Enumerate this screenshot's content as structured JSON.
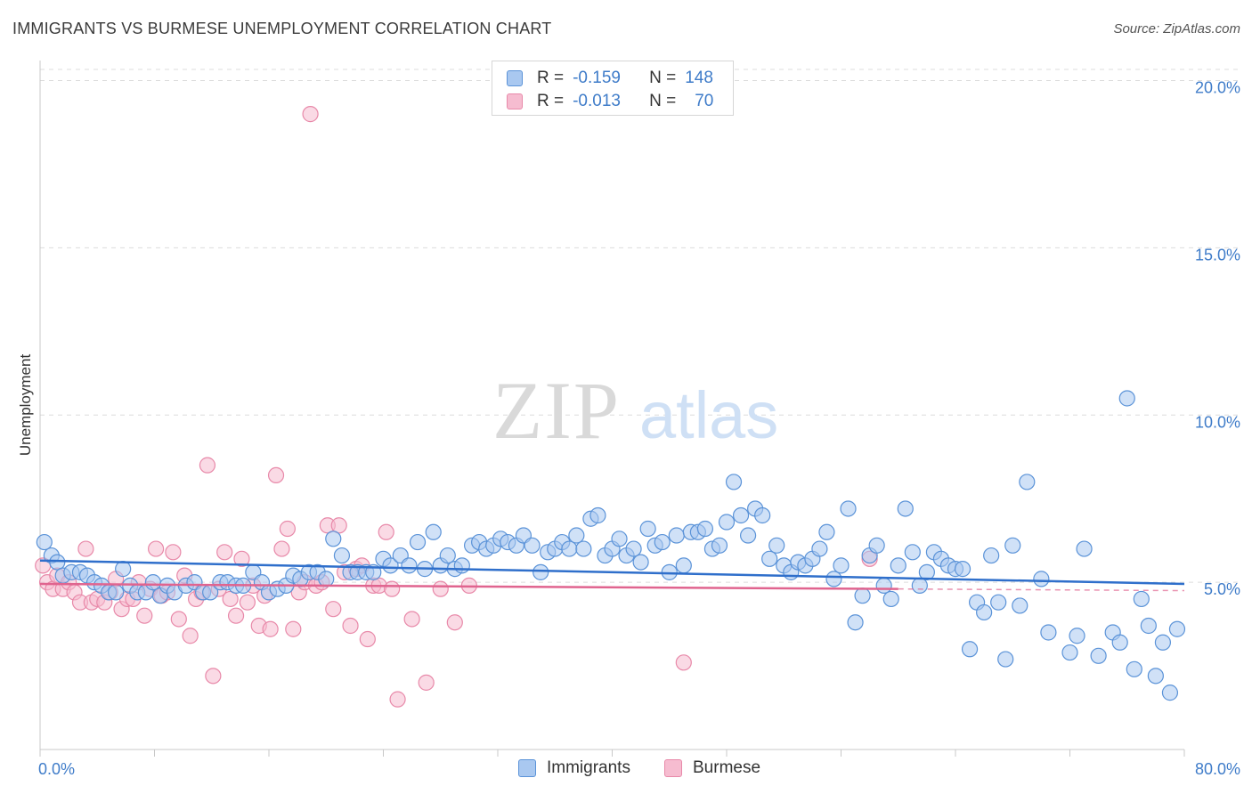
{
  "title": "IMMIGRANTS VS BURMESE UNEMPLOYMENT CORRELATION CHART",
  "source": "Source: ZipAtlas.com",
  "watermark": {
    "zip": "ZIP",
    "atlas": "atlas"
  },
  "colors": {
    "blue_fill": "#a9c8f0",
    "blue_stroke": "#5b93d8",
    "blue_line": "#2f6fcb",
    "pink_fill": "#f6bcd0",
    "pink_stroke": "#e889a9",
    "pink_line": "#e0648f",
    "tick_text": "#3f7cc9",
    "grid": "#dcdcdc"
  },
  "legend": {
    "r_label": "R =",
    "n_label": "N =",
    "rows": [
      {
        "r": "-0.159",
        "n": "148"
      },
      {
        "r": "-0.013",
        "n": "70"
      }
    ]
  },
  "chart_data": {
    "type": "scatter",
    "title": "IMMIGRANTS VS BURMESE UNEMPLOYMENT CORRELATION CHART",
    "xlabel": "",
    "ylabel": "Unemployment",
    "xlim": [
      0,
      80
    ],
    "ylim": [
      0,
      20.6
    ],
    "x_tick_labels": [
      "0.0%",
      "80.0%"
    ],
    "y_ticks": [
      5,
      10,
      15,
      20
    ],
    "y_tick_labels": [
      "5.0%",
      "10.0%",
      "15.0%",
      "20.0%"
    ],
    "legend_position": "top-center",
    "series": [
      {
        "name": "Immigrants",
        "r": -0.159,
        "n": 148,
        "trend": {
          "x": [
            0,
            80
          ],
          "y": [
            5.65,
            4.95
          ]
        },
        "points": [
          [
            0.3,
            6.2
          ],
          [
            0.8,
            5.8
          ],
          [
            1.2,
            5.6
          ],
          [
            1.6,
            5.2
          ],
          [
            2.2,
            5.3
          ],
          [
            2.8,
            5.3
          ],
          [
            3.3,
            5.2
          ],
          [
            3.8,
            5.0
          ],
          [
            4.3,
            4.9
          ],
          [
            4.8,
            4.7
          ],
          [
            5.3,
            4.7
          ],
          [
            5.8,
            5.4
          ],
          [
            6.3,
            4.9
          ],
          [
            6.8,
            4.7
          ],
          [
            7.4,
            4.7
          ],
          [
            7.9,
            5.0
          ],
          [
            8.4,
            4.6
          ],
          [
            8.9,
            4.9
          ],
          [
            9.4,
            4.7
          ],
          [
            10.2,
            4.9
          ],
          [
            10.8,
            5.0
          ],
          [
            11.4,
            4.7
          ],
          [
            11.9,
            4.7
          ],
          [
            12.6,
            5.0
          ],
          [
            13.1,
            5.0
          ],
          [
            13.7,
            4.9
          ],
          [
            14.2,
            4.9
          ],
          [
            14.9,
            5.3
          ],
          [
            15.5,
            5.0
          ],
          [
            16.0,
            4.7
          ],
          [
            16.6,
            4.8
          ],
          [
            17.2,
            4.9
          ],
          [
            17.7,
            5.2
          ],
          [
            18.2,
            5.1
          ],
          [
            18.8,
            5.3
          ],
          [
            19.4,
            5.3
          ],
          [
            20.0,
            5.1
          ],
          [
            20.5,
            6.3
          ],
          [
            21.1,
            5.8
          ],
          [
            21.7,
            5.3
          ],
          [
            22.2,
            5.3
          ],
          [
            22.8,
            5.3
          ],
          [
            23.3,
            5.3
          ],
          [
            24.0,
            5.7
          ],
          [
            24.5,
            5.5
          ],
          [
            25.2,
            5.8
          ],
          [
            25.8,
            5.5
          ],
          [
            26.4,
            6.2
          ],
          [
            26.9,
            5.4
          ],
          [
            27.5,
            6.5
          ],
          [
            28.0,
            5.5
          ],
          [
            28.5,
            5.8
          ],
          [
            29.0,
            5.4
          ],
          [
            29.5,
            5.5
          ],
          [
            30.2,
            6.1
          ],
          [
            30.7,
            6.2
          ],
          [
            31.2,
            6.0
          ],
          [
            31.7,
            6.1
          ],
          [
            32.2,
            6.3
          ],
          [
            32.7,
            6.2
          ],
          [
            33.3,
            6.1
          ],
          [
            33.8,
            6.4
          ],
          [
            34.4,
            6.1
          ],
          [
            35.0,
            5.3
          ],
          [
            35.5,
            5.9
          ],
          [
            36.0,
            6.0
          ],
          [
            36.5,
            6.2
          ],
          [
            37.0,
            6.0
          ],
          [
            37.5,
            6.4
          ],
          [
            38.0,
            6.0
          ],
          [
            38.5,
            6.9
          ],
          [
            39.0,
            7.0
          ],
          [
            39.5,
            5.8
          ],
          [
            40.0,
            6.0
          ],
          [
            40.5,
            6.3
          ],
          [
            41.0,
            5.8
          ],
          [
            41.5,
            6.0
          ],
          [
            42.0,
            5.6
          ],
          [
            42.5,
            6.6
          ],
          [
            43.0,
            6.1
          ],
          [
            43.5,
            6.2
          ],
          [
            44.0,
            5.3
          ],
          [
            44.5,
            6.4
          ],
          [
            45.0,
            5.5
          ],
          [
            45.5,
            6.5
          ],
          [
            46.0,
            6.5
          ],
          [
            46.5,
            6.6
          ],
          [
            47.0,
            6.0
          ],
          [
            47.5,
            6.1
          ],
          [
            48.0,
            6.8
          ],
          [
            48.5,
            8.0
          ],
          [
            49.0,
            7.0
          ],
          [
            49.5,
            6.4
          ],
          [
            50.0,
            7.2
          ],
          [
            50.5,
            7.0
          ],
          [
            51.0,
            5.7
          ],
          [
            51.5,
            6.1
          ],
          [
            52.0,
            5.5
          ],
          [
            52.5,
            5.3
          ],
          [
            53.0,
            5.6
          ],
          [
            53.5,
            5.5
          ],
          [
            54.0,
            5.7
          ],
          [
            54.5,
            6.0
          ],
          [
            55.0,
            6.5
          ],
          [
            55.5,
            5.1
          ],
          [
            56.0,
            5.5
          ],
          [
            56.5,
            7.2
          ],
          [
            57.0,
            3.8
          ],
          [
            57.5,
            4.6
          ],
          [
            58.0,
            5.8
          ],
          [
            58.5,
            6.1
          ],
          [
            59.0,
            4.9
          ],
          [
            59.5,
            4.5
          ],
          [
            60.0,
            5.5
          ],
          [
            60.5,
            7.2
          ],
          [
            61.0,
            5.9
          ],
          [
            61.5,
            4.9
          ],
          [
            62.0,
            5.3
          ],
          [
            62.5,
            5.9
          ],
          [
            63.0,
            5.7
          ],
          [
            63.5,
            5.5
          ],
          [
            64.0,
            5.4
          ],
          [
            64.5,
            5.4
          ],
          [
            65.0,
            3.0
          ],
          [
            65.5,
            4.4
          ],
          [
            66.0,
            4.1
          ],
          [
            66.5,
            5.8
          ],
          [
            67.0,
            4.4
          ],
          [
            67.5,
            2.7
          ],
          [
            68.0,
            6.1
          ],
          [
            68.5,
            4.3
          ],
          [
            69.0,
            8.0
          ],
          [
            70.0,
            5.1
          ],
          [
            70.5,
            3.5
          ],
          [
            72.0,
            2.9
          ],
          [
            72.5,
            3.4
          ],
          [
            73.0,
            6.0
          ],
          [
            74.0,
            2.8
          ],
          [
            75.0,
            3.5
          ],
          [
            75.5,
            3.2
          ],
          [
            76.0,
            10.5
          ],
          [
            76.5,
            2.4
          ],
          [
            77.0,
            4.5
          ],
          [
            77.5,
            3.7
          ],
          [
            78.0,
            2.2
          ],
          [
            78.5,
            3.2
          ],
          [
            79.0,
            1.7
          ],
          [
            79.5,
            3.6
          ]
        ]
      },
      {
        "name": "Burmese",
        "r": -0.013,
        "n": 70,
        "trend": {
          "x": [
            0,
            60
          ],
          "y": [
            4.95,
            4.8
          ]
        },
        "trend_dashed": {
          "x": [
            60,
            80
          ],
          "y": [
            4.8,
            4.75
          ]
        },
        "points": [
          [
            0.2,
            5.5
          ],
          [
            0.5,
            5.0
          ],
          [
            0.9,
            4.8
          ],
          [
            1.2,
            5.2
          ],
          [
            1.6,
            4.8
          ],
          [
            2.0,
            5.0
          ],
          [
            2.4,
            4.7
          ],
          [
            2.8,
            4.4
          ],
          [
            3.2,
            6.0
          ],
          [
            3.6,
            4.4
          ],
          [
            4.0,
            4.5
          ],
          [
            4.5,
            4.4
          ],
          [
            4.9,
            4.7
          ],
          [
            5.3,
            5.1
          ],
          [
            5.7,
            4.2
          ],
          [
            6.1,
            4.5
          ],
          [
            6.5,
            4.5
          ],
          [
            6.9,
            5.0
          ],
          [
            7.3,
            4.0
          ],
          [
            7.7,
            4.8
          ],
          [
            8.1,
            6.0
          ],
          [
            8.5,
            4.6
          ],
          [
            8.9,
            4.7
          ],
          [
            9.3,
            5.9
          ],
          [
            9.7,
            3.9
          ],
          [
            10.1,
            5.2
          ],
          [
            10.5,
            3.4
          ],
          [
            10.9,
            4.5
          ],
          [
            11.3,
            4.7
          ],
          [
            11.7,
            8.5
          ],
          [
            12.1,
            2.2
          ],
          [
            12.5,
            4.8
          ],
          [
            12.9,
            5.9
          ],
          [
            13.3,
            4.5
          ],
          [
            13.7,
            4.0
          ],
          [
            14.1,
            5.7
          ],
          [
            14.5,
            4.4
          ],
          [
            14.9,
            4.9
          ],
          [
            15.3,
            3.7
          ],
          [
            15.7,
            4.6
          ],
          [
            16.1,
            3.6
          ],
          [
            16.5,
            8.2
          ],
          [
            16.9,
            6.0
          ],
          [
            17.3,
            6.6
          ],
          [
            17.7,
            3.6
          ],
          [
            18.1,
            4.7
          ],
          [
            18.5,
            5.0
          ],
          [
            18.9,
            19.0
          ],
          [
            19.3,
            4.9
          ],
          [
            19.7,
            5.0
          ],
          [
            20.1,
            6.7
          ],
          [
            20.5,
            4.2
          ],
          [
            20.9,
            6.7
          ],
          [
            21.3,
            5.3
          ],
          [
            21.7,
            3.7
          ],
          [
            22.1,
            5.4
          ],
          [
            22.5,
            5.5
          ],
          [
            22.9,
            3.3
          ],
          [
            23.3,
            4.9
          ],
          [
            23.7,
            4.9
          ],
          [
            24.2,
            6.5
          ],
          [
            24.6,
            4.8
          ],
          [
            25.0,
            1.5
          ],
          [
            26.0,
            3.9
          ],
          [
            27.0,
            2.0
          ],
          [
            28.0,
            4.8
          ],
          [
            29.0,
            3.8
          ],
          [
            30.0,
            4.9
          ],
          [
            45.0,
            2.6
          ],
          [
            58.0,
            5.7
          ]
        ]
      }
    ]
  }
}
